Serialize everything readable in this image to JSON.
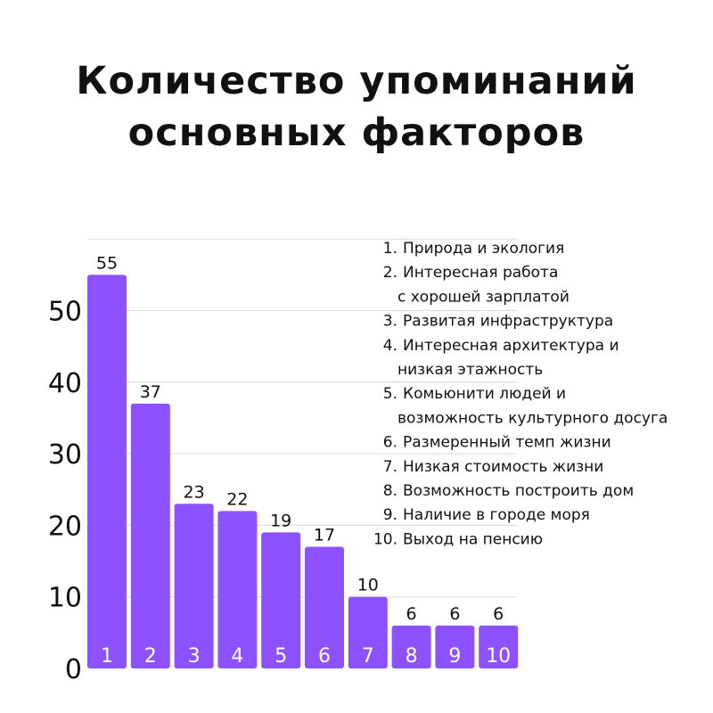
{
  "chart_data": {
    "type": "bar",
    "title": [
      "Количество упоминаний",
      "основных факторов"
    ],
    "xlabel": "",
    "ylabel": "",
    "categories": [
      "1",
      "2",
      "3",
      "4",
      "5",
      "6",
      "7",
      "8",
      "9",
      "10"
    ],
    "values": [
      55,
      37,
      23,
      22,
      19,
      17,
      10,
      6,
      6,
      6
    ],
    "ylim": [
      0,
      60
    ],
    "yticks": [
      0,
      10,
      20,
      30,
      40,
      50
    ],
    "grid": true,
    "legend_placement": "top-right",
    "legend": [
      {
        "number": "1.",
        "lines": [
          "Природа и экология"
        ]
      },
      {
        "number": "2.",
        "lines": [
          "Интересная работа",
          "с хорошей зарплатой"
        ]
      },
      {
        "number": "3.",
        "lines": [
          "Развитая инфраструктура"
        ]
      },
      {
        "number": "4.",
        "lines": [
          "Интересная архитектура и",
          "низкая этажность"
        ]
      },
      {
        "number": "5.",
        "lines": [
          "Комьюнити людей и",
          "возможность культурного досуга"
        ]
      },
      {
        "number": "6.",
        "lines": [
          "Размеренный темп жизни"
        ]
      },
      {
        "number": "7.",
        "lines": [
          "Низкая стоимость жизни"
        ]
      },
      {
        "number": "8.",
        "lines": [
          "Возможность построить дом"
        ]
      },
      {
        "number": "9.",
        "lines": [
          "Наличие в городе моря"
        ]
      },
      {
        "number": "10.",
        "lines": [
          "Выход на пенсию"
        ]
      }
    ]
  },
  "colors": {
    "bar": "#8C52FF",
    "bar_label_text": "#ffffff",
    "grid": "#d9d9d9",
    "text": "#111111"
  }
}
